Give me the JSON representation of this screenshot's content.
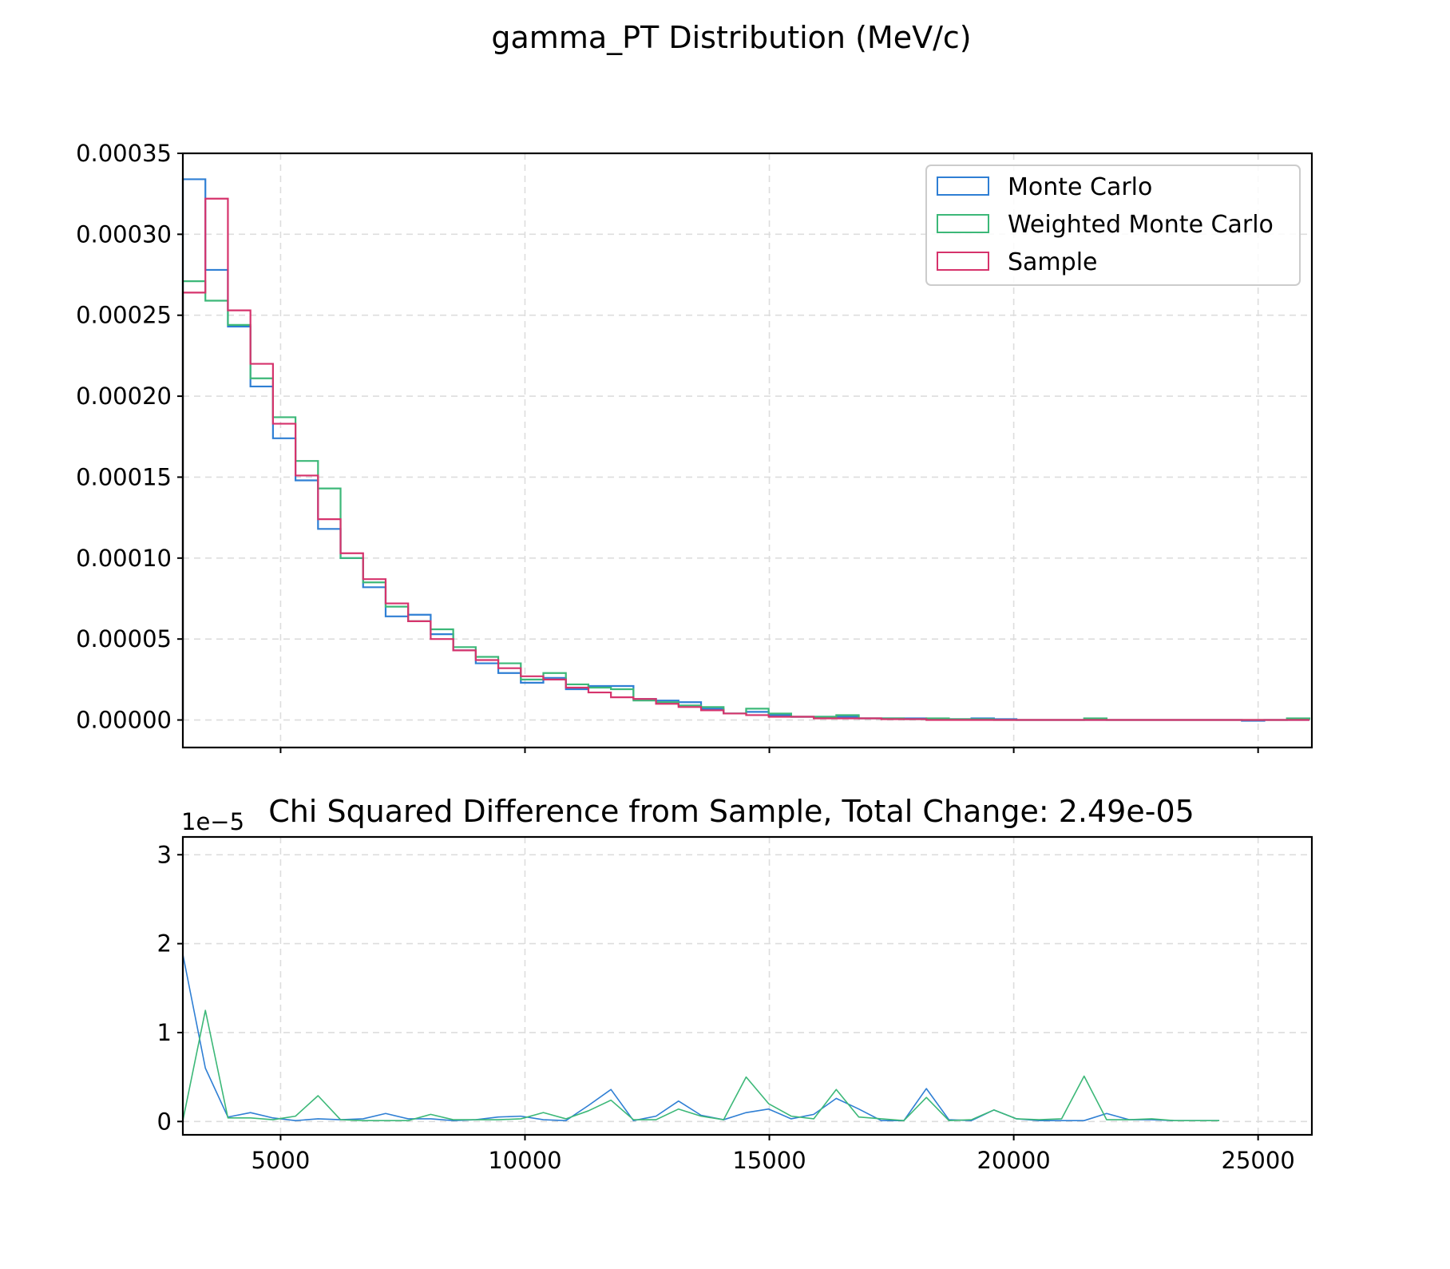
{
  "chart_data": [
    {
      "type": "histogram",
      "title": "gamma_PT Distribution (MeV/c)",
      "xlim": [
        3000,
        26100
      ],
      "ylim": [
        -1.7e-05,
        0.00035
      ],
      "x_ticks": [
        5000,
        10000,
        15000,
        20000,
        25000
      ],
      "y_ticks": [
        "0.00000",
        "0.00005",
        "0.00010",
        "0.00015",
        "0.00020",
        "0.00025",
        "0.00030",
        "0.00035"
      ],
      "y_tick_values": [
        0,
        5e-05,
        0.0001,
        0.00015,
        0.0002,
        0.00025,
        0.0003,
        0.00035
      ],
      "grid": true,
      "legend_position": "top-right",
      "bin_edges": [
        3000,
        3461,
        3922,
        4383,
        4844,
        5305,
        5766,
        6227,
        6688,
        7149,
        7610,
        8071,
        8532,
        8993,
        9454,
        9915,
        10376,
        10837,
        11298,
        11759,
        12220,
        12681,
        13142,
        13603,
        14064,
        14525,
        14986,
        15447,
        15908,
        16369,
        16830,
        17291,
        17752,
        18213,
        18674,
        19135,
        19596,
        20057,
        20518,
        20979,
        21440,
        21901,
        22362,
        22823,
        23284,
        23745,
        24206,
        24667,
        25128,
        25589,
        26050
      ],
      "series": [
        {
          "name": "Monte Carlo",
          "color": "#2f7fd4",
          "values": [
            0.000334,
            0.000278,
            0.000243,
            0.000206,
            0.000174,
            0.000148,
            0.000118,
            0.0001,
            8.2e-05,
            6.4e-05,
            6.5e-05,
            5.3e-05,
            4.3e-05,
            3.5e-05,
            2.9e-05,
            2.3e-05,
            2.6e-05,
            1.9e-05,
            2.1e-05,
            2.1e-05,
            1.3e-05,
            1.2e-05,
            1.1e-05,
            7e-06,
            4e-06,
            5e-06,
            3e-06,
            2e-06,
            2e-06,
            2e-06,
            1e-06,
            1e-06,
            1e-06,
            5e-07,
            5e-07,
            1e-06,
            5e-07,
            0.0,
            0.0,
            0.0,
            0.0,
            0.0,
            0.0,
            0.0,
            0.0,
            0.0,
            0.0,
            -5e-07,
            0.0,
            0.0
          ]
        },
        {
          "name": "Weighted Monte Carlo",
          "color": "#3cb878",
          "values": [
            0.000271,
            0.000259,
            0.000244,
            0.000211,
            0.000187,
            0.00016,
            0.000143,
            0.0001,
            8.5e-05,
            7e-05,
            6.1e-05,
            5.6e-05,
            4.5e-05,
            3.9e-05,
            3.5e-05,
            2.5e-05,
            2.9e-05,
            2.2e-05,
            2e-05,
            1.9e-05,
            1.2e-05,
            1.1e-05,
            9e-06,
            8e-06,
            4e-06,
            7e-06,
            4e-06,
            2e-06,
            2e-06,
            3e-06,
            1e-06,
            1e-06,
            5e-07,
            1e-06,
            5e-07,
            5e-07,
            0.0,
            0.0,
            0.0,
            0.0,
            1e-06,
            0.0,
            0.0,
            0.0,
            0.0,
            0.0,
            0.0,
            0.0,
            0.0,
            1e-06
          ]
        },
        {
          "name": "Sample",
          "color": "#d6336c",
          "values": [
            0.000264,
            0.000322,
            0.000253,
            0.00022,
            0.000183,
            0.000151,
            0.000124,
            0.000103,
            8.7e-05,
            7.2e-05,
            6.1e-05,
            5e-05,
            4.3e-05,
            3.7e-05,
            3.2e-05,
            2.7e-05,
            2.5e-05,
            2e-05,
            1.7e-05,
            1.4e-05,
            1.3e-05,
            1e-05,
            8e-06,
            6e-06,
            4e-06,
            3e-06,
            2e-06,
            2e-06,
            1e-06,
            1e-06,
            1e-06,
            5e-07,
            5e-07,
            0.0,
            0.0,
            0.0,
            0.0,
            0.0,
            0.0,
            0.0,
            0.0,
            0.0,
            0.0,
            0.0,
            0.0,
            0.0,
            0.0,
            0.0,
            0.0,
            0.0
          ]
        }
      ]
    },
    {
      "type": "line",
      "title": "Chi Squared Difference from Sample, Total Change: 2.49e-05",
      "y_offset_label": "1e−5",
      "xlim": [
        3000,
        26100
      ],
      "ylim": [
        -0.15,
        3.2
      ],
      "x_ticks": [
        5000,
        10000,
        15000,
        20000,
        25000
      ],
      "y_ticks": [
        "0",
        "1",
        "2",
        "3"
      ],
      "y_tick_values": [
        0,
        1,
        2,
        3
      ],
      "grid": true,
      "x": [
        3000,
        3461,
        3922,
        4383,
        4844,
        5305,
        5766,
        6227,
        6688,
        7149,
        7610,
        8071,
        8532,
        8993,
        9454,
        9915,
        10376,
        10837,
        11298,
        11759,
        12220,
        12681,
        13142,
        13603,
        14064,
        14525,
        14986,
        15447,
        15908,
        16369,
        16830,
        17291,
        17752,
        18213,
        18674,
        19135,
        19596,
        20057,
        20518,
        20979,
        21440,
        21901,
        22362,
        22823,
        23284,
        23745,
        24206
      ],
      "series": [
        {
          "color": "#2f7fd4",
          "values": [
            1.88,
            0.6,
            0.05,
            0.1,
            0.04,
            0.01,
            0.03,
            0.02,
            0.03,
            0.09,
            0.03,
            0.03,
            0.01,
            0.02,
            0.05,
            0.06,
            0.02,
            0.01,
            0.18,
            0.36,
            0.01,
            0.06,
            0.23,
            0.07,
            0.02,
            0.1,
            0.14,
            0.03,
            0.08,
            0.26,
            0.14,
            0.01,
            0.01,
            0.37,
            0.02,
            0.01,
            0.13,
            0.03,
            0.01,
            0.01,
            0.01,
            0.09,
            0.02,
            0.02,
            0.01,
            0.01,
            0.01
          ]
        },
        {
          "color": "#3cb878",
          "values": [
            0.01,
            1.25,
            0.04,
            0.04,
            0.02,
            0.06,
            0.29,
            0.02,
            0.01,
            0.01,
            0.01,
            0.08,
            0.02,
            0.02,
            0.02,
            0.03,
            0.1,
            0.03,
            0.12,
            0.24,
            0.02,
            0.02,
            0.14,
            0.06,
            0.02,
            0.5,
            0.2,
            0.06,
            0.03,
            0.36,
            0.05,
            0.03,
            0.01,
            0.27,
            0.01,
            0.02,
            0.13,
            0.03,
            0.02,
            0.03,
            0.51,
            0.02,
            0.02,
            0.03,
            0.01,
            0.01,
            0.01
          ]
        }
      ]
    }
  ]
}
